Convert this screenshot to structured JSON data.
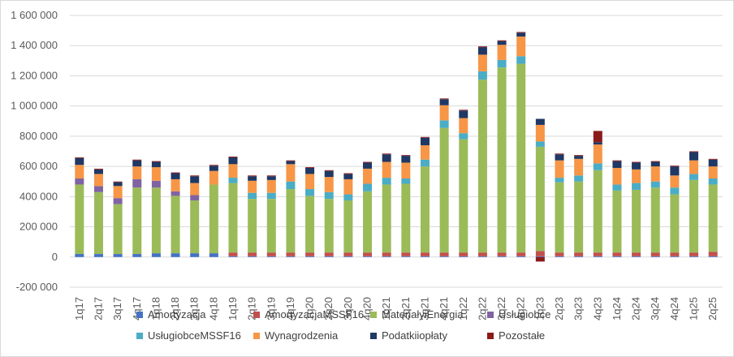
{
  "chart_data": {
    "type": "bar",
    "stacked": true,
    "categories": [
      "1q17",
      "2q17",
      "3q17",
      "4q17",
      "1q18",
      "2q18",
      "3q18",
      "4q18",
      "1q19",
      "2q19",
      "3q19",
      "4q19",
      "1q20",
      "2q20",
      "3q20",
      "4q20",
      "1q21",
      "2q21",
      "3q21",
      "4q21",
      "1q22",
      "2q22",
      "3q22",
      "4q22",
      "1q23",
      "2q23",
      "3q23",
      "4q23",
      "1q24",
      "2q24",
      "3q24",
      "4q24",
      "1q25",
      "2q25"
    ],
    "ylim": [
      -200000,
      1600000
    ],
    "yticks": [
      "-200 000",
      "0",
      "200 000",
      "400 000",
      "600 000",
      "800 000",
      "1 000 000",
      "1 200 000",
      "1 400 000",
      "1 600 000"
    ],
    "ytick_values": [
      -200000,
      0,
      200000,
      400000,
      600000,
      800000,
      1000000,
      1200000,
      1400000,
      1600000
    ],
    "grid": true,
    "legend_position": "bottom",
    "series": [
      {
        "name": "Amortyzacja",
        "color": "#4472c4",
        "values": [
          20000,
          20000,
          20000,
          20000,
          25000,
          25000,
          25000,
          25000,
          5000,
          5000,
          5000,
          5000,
          5000,
          5000,
          5000,
          5000,
          5000,
          5000,
          5000,
          5000,
          5000,
          5000,
          5000,
          5000,
          5000,
          5000,
          5000,
          5000,
          5000,
          5000,
          5000,
          5000,
          5000,
          5000
        ]
      },
      {
        "name": "AmortyzacjaMSSF16",
        "color": "#c0504d",
        "values": [
          0,
          0,
          0,
          0,
          0,
          0,
          0,
          0,
          25000,
          25000,
          25000,
          25000,
          25000,
          25000,
          25000,
          25000,
          25000,
          25000,
          25000,
          25000,
          25000,
          25000,
          25000,
          25000,
          35000,
          25000,
          25000,
          25000,
          25000,
          25000,
          25000,
          25000,
          25000,
          30000
        ]
      },
      {
        "name": "MateriałyiEnergia",
        "color": "#9bbb59",
        "values": [
          460000,
          410000,
          330000,
          440000,
          435000,
          380000,
          350000,
          455000,
          460000,
          355000,
          355000,
          420000,
          375000,
          355000,
          345000,
          405000,
          450000,
          455000,
          570000,
          825000,
          750000,
          1145000,
          1225000,
          1250000,
          690000,
          465000,
          470000,
          545000,
          410000,
          415000,
          430000,
          385000,
          480000,
          445000
        ]
      },
      {
        "name": "Usługiobce",
        "color": "#8064a2",
        "values": [
          40000,
          40000,
          40000,
          55000,
          45000,
          30000,
          35000,
          0,
          0,
          0,
          0,
          0,
          0,
          0,
          0,
          0,
          0,
          0,
          0,
          0,
          0,
          0,
          0,
          0,
          0,
          0,
          0,
          0,
          0,
          0,
          0,
          0,
          0,
          0
        ]
      },
      {
        "name": "UsługiobceMSSF16",
        "color": "#4bacc6",
        "values": [
          0,
          0,
          0,
          0,
          0,
          0,
          0,
          0,
          35000,
          40000,
          40000,
          50000,
          45000,
          45000,
          40000,
          50000,
          45000,
          35000,
          45000,
          50000,
          40000,
          55000,
          50000,
          50000,
          35000,
          30000,
          40000,
          45000,
          40000,
          45000,
          40000,
          45000,
          40000,
          40000
        ]
      },
      {
        "name": "Wynagrodzenia",
        "color": "#f79646",
        "values": [
          90000,
          80000,
          80000,
          85000,
          90000,
          80000,
          80000,
          90000,
          90000,
          80000,
          85000,
          115000,
          100000,
          100000,
          100000,
          100000,
          105000,
          105000,
          95000,
          100000,
          100000,
          110000,
          100000,
          130000,
          110000,
          115000,
          110000,
          125000,
          110000,
          90000,
          100000,
          80000,
          90000,
          80000
        ]
      },
      {
        "name": "Podatkiiopłaty",
        "color": "#1f3864",
        "values": [
          45000,
          30000,
          25000,
          40000,
          35000,
          40000,
          45000,
          35000,
          45000,
          30000,
          25000,
          20000,
          40000,
          40000,
          35000,
          40000,
          50000,
          45000,
          50000,
          40000,
          50000,
          50000,
          25000,
          25000,
          40000,
          40000,
          20000,
          15000,
          45000,
          45000,
          30000,
          60000,
          55000,
          45000
        ]
      },
      {
        "name": "Pozostałe",
        "color": "#8b1a1a",
        "values": [
          5000,
          5000,
          5000,
          5000,
          5000,
          5000,
          5000,
          5000,
          5000,
          5000,
          5000,
          5000,
          5000,
          5000,
          5000,
          5000,
          5000,
          5000,
          5000,
          5000,
          5000,
          5000,
          5000,
          5000,
          -30000,
          5000,
          5000,
          75000,
          5000,
          5000,
          5000,
          5000,
          5000,
          5000
        ]
      }
    ]
  }
}
